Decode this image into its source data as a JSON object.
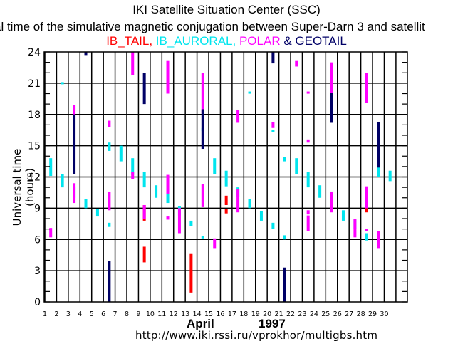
{
  "header": {
    "title": "IKI Satellite Situation Center (SSC)",
    "subtitle": "al time of the simulative magnetic conjugation between Super-Darn 3 and satellit",
    "legend": [
      {
        "label": "IB_TAIL,",
        "color": "#ff0000"
      },
      {
        "label": " IB_AURORAL,",
        "color": "#00e5ee"
      },
      {
        "label": " POLAR",
        "color": "#ff00ff"
      },
      {
        "label": " & GEOTAIL",
        "color": "#000066"
      }
    ]
  },
  "footer": {
    "month": "April",
    "year": "1997",
    "url": "http://www.iki.rssi.ru/vprokhor/multigbs.htm"
  },
  "chart_data": {
    "type": "bar",
    "title": "IKI Satellite Situation Center (SSC)",
    "xlabel": "April 1997",
    "ylabel": "Universal time (hours)",
    "ylim": [
      0,
      24
    ],
    "yticks": [
      0,
      3,
      6,
      9,
      12,
      15,
      18,
      21,
      24
    ],
    "xticks": [
      "1",
      "2",
      "3",
      "4",
      "5",
      "6",
      "7",
      "8",
      "9",
      "10",
      "11",
      "12",
      "13",
      "14",
      "15",
      "16",
      "17",
      "18",
      "19",
      "20",
      "21",
      "22",
      "23",
      "24",
      "25",
      "26",
      "27",
      "28",
      "29",
      "30"
    ],
    "grid": true,
    "legend_position": "top",
    "series": [
      {
        "name": "IB_TAIL",
        "color": "#ff0000",
        "segments": [
          {
            "day": 9,
            "start": 3.8,
            "end": 5.3
          },
          {
            "day": 9,
            "start": 7.8,
            "end": 9.3
          },
          {
            "day": 13,
            "start": 0.9,
            "end": 4.6
          },
          {
            "day": 16,
            "start": 9.3,
            "end": 10.2
          },
          {
            "day": 16,
            "start": 8.5,
            "end": 8.9
          },
          {
            "day": 28,
            "start": 8.6,
            "end": 9.0
          }
        ]
      },
      {
        "name": "IB_AURORAL",
        "color": "#00e5ee",
        "segments": [
          {
            "day": 1,
            "start": 12.1,
            "end": 13.8
          },
          {
            "day": 2,
            "start": 21.0,
            "end": 21.1
          },
          {
            "day": 2,
            "start": 11.0,
            "end": 12.3
          },
          {
            "day": 3,
            "start": 10.0,
            "end": 11.1
          },
          {
            "day": 4,
            "start": 9.0,
            "end": 9.9
          },
          {
            "day": 5,
            "start": 8.2,
            "end": 8.9
          },
          {
            "day": 6,
            "start": 7.2,
            "end": 7.6
          },
          {
            "day": 6,
            "start": 14.5,
            "end": 15.3
          },
          {
            "day": 7,
            "start": 13.5,
            "end": 15.0
          },
          {
            "day": 8,
            "start": 12.2,
            "end": 13.8
          },
          {
            "day": 9,
            "start": 11.0,
            "end": 12.5
          },
          {
            "day": 10,
            "start": 10.0,
            "end": 11.2
          },
          {
            "day": 11,
            "start": 9.5,
            "end": 10.9
          },
          {
            "day": 12,
            "start": 8.3,
            "end": 9.2
          },
          {
            "day": 13,
            "start": 7.3,
            "end": 7.8
          },
          {
            "day": 14,
            "start": 6.1,
            "end": 6.3
          },
          {
            "day": 14,
            "start": 16.4,
            "end": 16.7
          },
          {
            "day": 15,
            "start": 12.3,
            "end": 13.8
          },
          {
            "day": 16,
            "start": 11.1,
            "end": 12.6
          },
          {
            "day": 17,
            "start": 10.1,
            "end": 11.0
          },
          {
            "day": 18,
            "start": 9.0,
            "end": 9.9
          },
          {
            "day": 18,
            "start": 20.0,
            "end": 20.2
          },
          {
            "day": 19,
            "start": 7.8,
            "end": 8.7
          },
          {
            "day": 20,
            "start": 7.0,
            "end": 7.6
          },
          {
            "day": 20,
            "start": 16.3,
            "end": 16.5
          },
          {
            "day": 21,
            "start": 6.0,
            "end": 6.4
          },
          {
            "day": 21,
            "start": 13.5,
            "end": 13.9
          },
          {
            "day": 22,
            "start": 12.3,
            "end": 13.8
          },
          {
            "day": 23,
            "start": 11.0,
            "end": 12.5
          },
          {
            "day": 24,
            "start": 10.0,
            "end": 11.2
          },
          {
            "day": 25,
            "start": 8.8,
            "end": 10.6
          },
          {
            "day": 25,
            "start": 18.7,
            "end": 19.0
          },
          {
            "day": 26,
            "start": 7.8,
            "end": 8.8
          },
          {
            "day": 27,
            "start": 7.0,
            "end": 7.9
          },
          {
            "day": 28,
            "start": 5.9,
            "end": 6.6
          },
          {
            "day": 29,
            "start": 12.0,
            "end": 13.6
          },
          {
            "day": 29,
            "start": 15.3,
            "end": 15.5
          },
          {
            "day": 30,
            "start": 11.6,
            "end": 12.6
          }
        ]
      },
      {
        "name": "POLAR",
        "color": "#ff00ff",
        "segments": [
          {
            "day": 1,
            "start": 6.2,
            "end": 7.1
          },
          {
            "day": 3,
            "start": 9.5,
            "end": 11.4
          },
          {
            "day": 3,
            "start": 18.0,
            "end": 18.9
          },
          {
            "day": 6,
            "start": 8.8,
            "end": 10.6
          },
          {
            "day": 6,
            "start": 16.8,
            "end": 17.4
          },
          {
            "day": 8,
            "start": 11.8,
            "end": 12.5
          },
          {
            "day": 8,
            "start": 21.8,
            "end": 24.0
          },
          {
            "day": 9,
            "start": 8.0,
            "end": 9.3
          },
          {
            "day": 11,
            "start": 7.9,
            "end": 8.2
          },
          {
            "day": 11,
            "start": 10.4,
            "end": 12.2
          },
          {
            "day": 11,
            "start": 20.0,
            "end": 23.2
          },
          {
            "day": 12,
            "start": 6.6,
            "end": 9.0
          },
          {
            "day": 14,
            "start": 9.1,
            "end": 11.3
          },
          {
            "day": 14,
            "start": 18.1,
            "end": 22.0
          },
          {
            "day": 15,
            "start": 5.1,
            "end": 6.1
          },
          {
            "day": 17,
            "start": 8.6,
            "end": 10.8
          },
          {
            "day": 17,
            "start": 17.2,
            "end": 18.4
          },
          {
            "day": 20,
            "start": 16.7,
            "end": 17.3
          },
          {
            "day": 22,
            "start": 22.6,
            "end": 23.2
          },
          {
            "day": 23,
            "start": 15.3,
            "end": 15.6
          },
          {
            "day": 23,
            "start": 20.0,
            "end": 20.2
          },
          {
            "day": 23,
            "start": 8.4,
            "end": 8.8
          },
          {
            "day": 23,
            "start": 6.8,
            "end": 8.3
          },
          {
            "day": 25,
            "start": 19.7,
            "end": 23.0
          },
          {
            "day": 25,
            "start": 8.6,
            "end": 10.6
          },
          {
            "day": 27,
            "start": 6.2,
            "end": 8.0
          },
          {
            "day": 28,
            "start": 19.1,
            "end": 22.0
          },
          {
            "day": 28,
            "start": 9.0,
            "end": 11.1
          },
          {
            "day": 28,
            "start": 6.8,
            "end": 7.0
          },
          {
            "day": 29,
            "start": 5.1,
            "end": 6.8
          }
        ]
      },
      {
        "name": "GEOTAIL",
        "color": "#000066",
        "segments": [
          {
            "day": 3,
            "start": 12.3,
            "end": 18.0
          },
          {
            "day": 4,
            "start": 23.7,
            "end": 24.0
          },
          {
            "day": 6,
            "start": 0.0,
            "end": 3.9
          },
          {
            "day": 9,
            "start": 19.0,
            "end": 22.0
          },
          {
            "day": 14,
            "start": 14.7,
            "end": 18.5
          },
          {
            "day": 20,
            "start": 22.9,
            "end": 24.0
          },
          {
            "day": 21,
            "start": 0.0,
            "end": 3.3
          },
          {
            "day": 25,
            "start": 17.2,
            "end": 20.1
          },
          {
            "day": 29,
            "start": 12.9,
            "end": 17.3
          }
        ]
      }
    ]
  }
}
